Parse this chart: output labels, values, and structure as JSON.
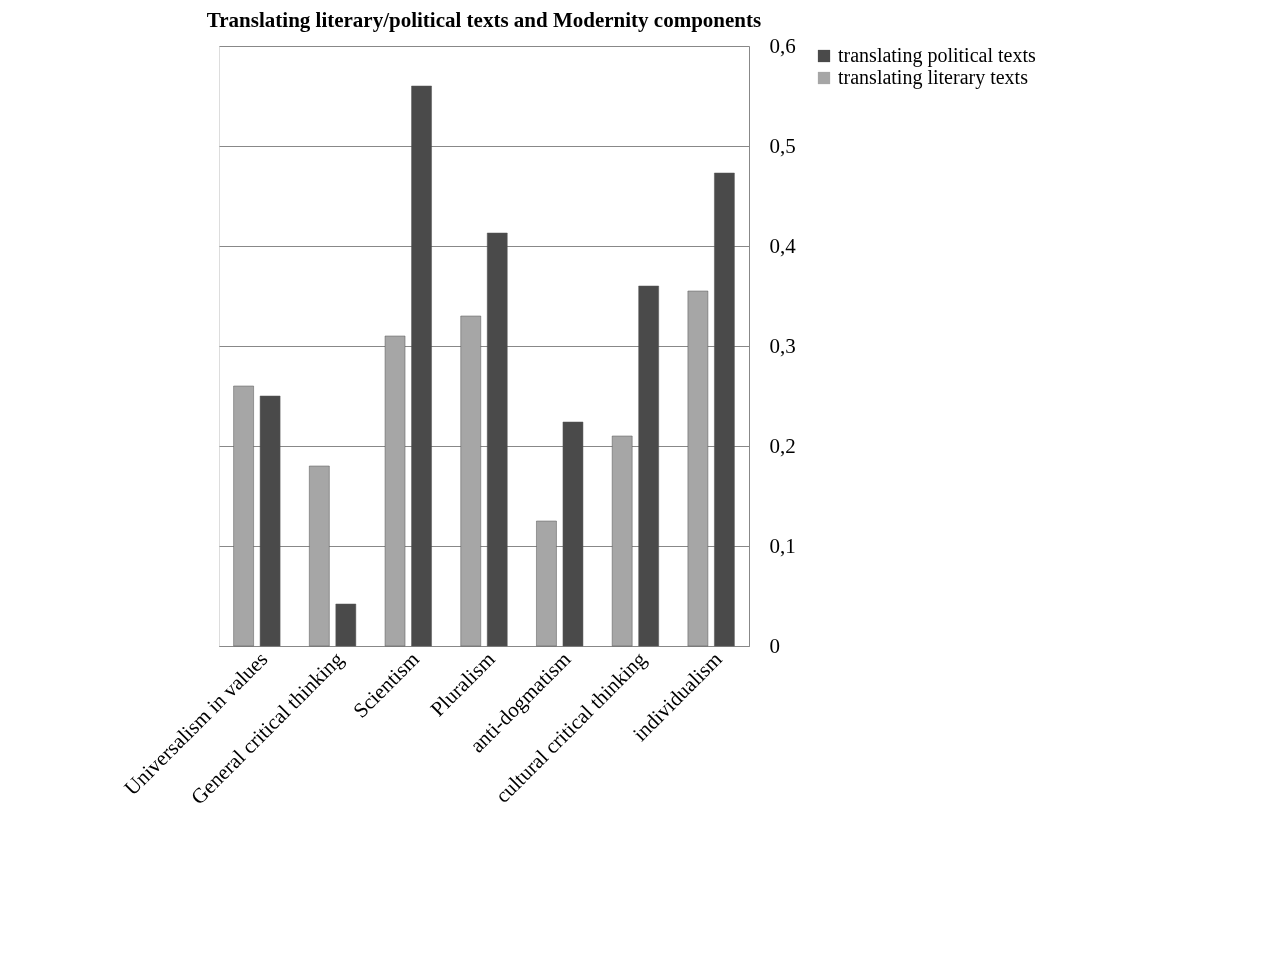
{
  "chart_data": {
    "type": "bar",
    "title": "Translating literary/political texts and Modernity components",
    "categories": [
      "Universalism in values",
      "General critical thinking",
      "Scientism",
      "Pluralism",
      "anti-dogmatism",
      "cultural critical thinking",
      "individualism"
    ],
    "series": [
      {
        "name": "translating political texts",
        "color": "#4a4a4a",
        "values": [
          0.25,
          0.042,
          0.56,
          0.413,
          0.224,
          0.36,
          0.473
        ]
      },
      {
        "name": "translating literary texts",
        "color": "#a6a6a6",
        "values": [
          0.26,
          0.18,
          0.31,
          0.33,
          0.125,
          0.21,
          0.355
        ]
      }
    ],
    "ylim": [
      0,
      0.6
    ],
    "yticks": [
      {
        "value": 0,
        "label": "0"
      },
      {
        "value": 0.1,
        "label": "0,1"
      },
      {
        "value": 0.2,
        "label": "0,2"
      },
      {
        "value": 0.3,
        "label": "0,3"
      },
      {
        "value": 0.4,
        "label": "0,4"
      },
      {
        "value": 0.5,
        "label": "0,5"
      },
      {
        "value": 0.6,
        "label": "0,6"
      }
    ],
    "grid": "y",
    "legend": "right"
  }
}
